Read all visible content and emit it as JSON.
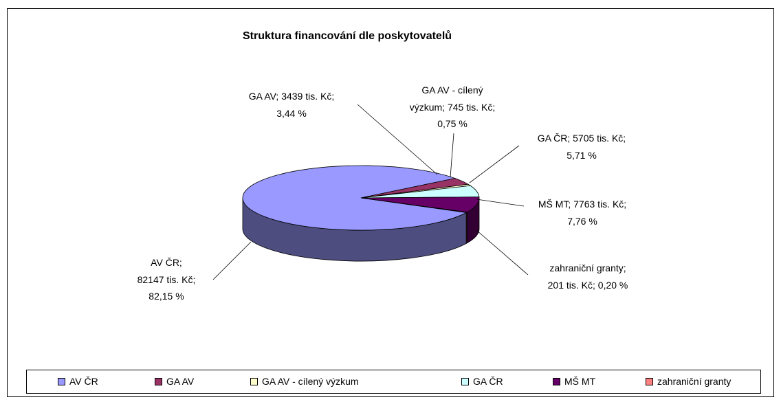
{
  "chart_data": {
    "type": "pie3d",
    "title": "Struktura financování dle poskytovatelů",
    "categories": [
      "AV ČR",
      "GA AV",
      "GA AV - cílený výzkum",
      "GA ČR",
      "MŠ MT",
      "zahraniční granty"
    ],
    "values": [
      82147,
      3439,
      745,
      5705,
      7763,
      201
    ],
    "value_labels": [
      "AV ČR;\n82147 tis. Kč;\n82,15 %",
      "GA AV; 3439 tis. Kč;\n3,44 %",
      "GA AV - cílený\nvýzkum; 745 tis. Kč;\n0,75 %",
      "GA ČR; 5705 tis. Kč;\n5,71 %",
      "MŠ MT; 7763 tis. Kč;\n7,76 %",
      "zahraniční granty;\n201 tis. Kč; 0,20 %"
    ],
    "colors": [
      "#9999ff",
      "#993366",
      "#ffffcc",
      "#ccffff",
      "#660066",
      "#ff8080"
    ],
    "legend": "bottom"
  }
}
